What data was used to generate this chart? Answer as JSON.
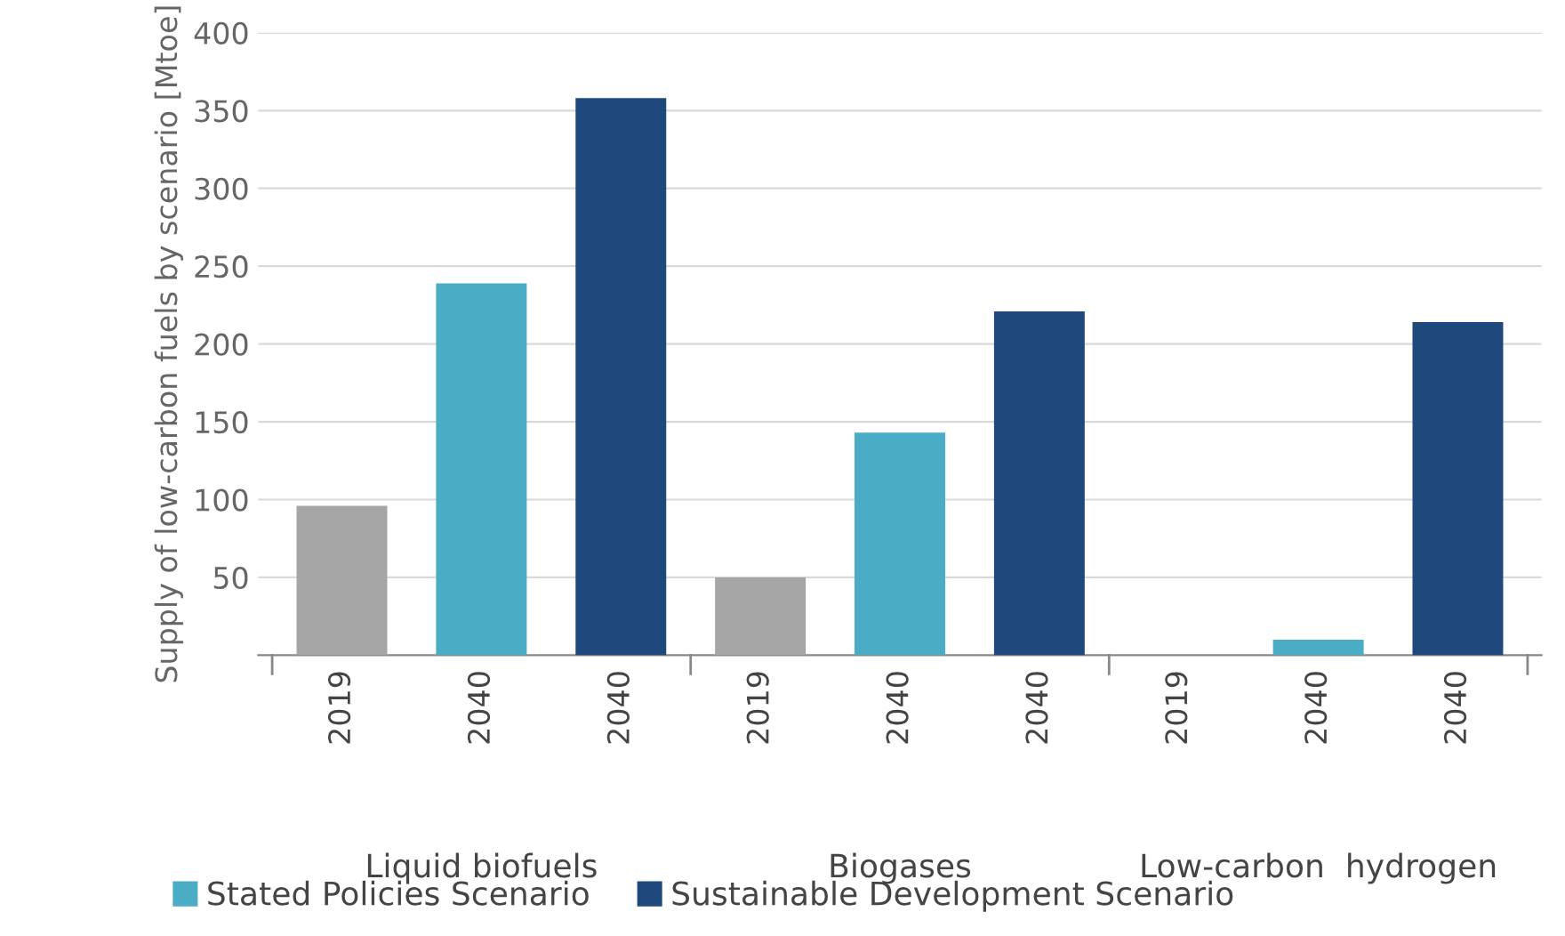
{
  "chart_data": {
    "type": "bar",
    "ylabel": "Supply of low-carbon fuels by scenario [Mtoe]",
    "categories": [
      "2019",
      "2040",
      "2040",
      "2019",
      "2040",
      "2040",
      "2019",
      "2040",
      "2040"
    ],
    "series": [
      {
        "color": "#a5a5a5",
        "values": [
          96,
          null,
          null,
          50,
          null,
          null,
          0,
          null,
          null
        ]
      },
      {
        "name": "Stated Policies Scenario",
        "color": "#4bacc6",
        "values": [
          null,
          239,
          null,
          null,
          143,
          null,
          null,
          10,
          null
        ]
      },
      {
        "name": "Sustainable Development Scenario",
        "color": "#1f497d",
        "values": [
          null,
          null,
          358,
          null,
          null,
          221,
          null,
          null,
          214
        ]
      }
    ],
    "annotations": [
      "Liquid biofuels",
      "Biogases",
      "Low-carbon  hydrogen"
    ],
    "ylim": [
      0,
      400
    ],
    "yticks": [
      50,
      100,
      150,
      200,
      250,
      300,
      350,
      400
    ],
    "grid": "y",
    "legend": "bottom"
  }
}
